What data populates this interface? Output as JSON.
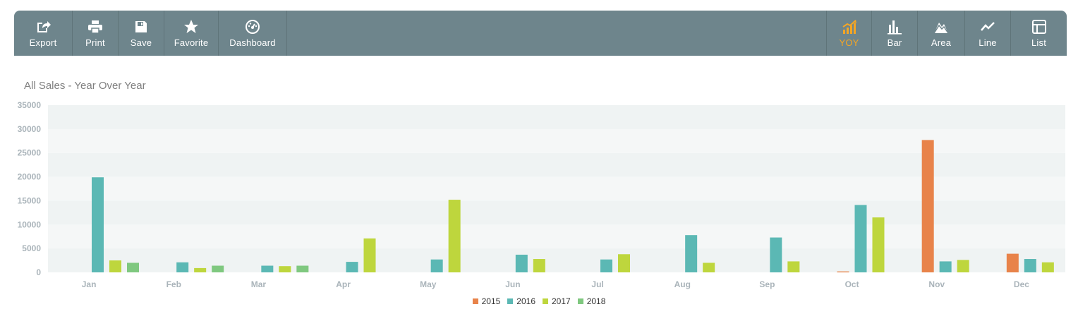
{
  "toolbar": {
    "left": [
      {
        "label": "Export",
        "icon": "export-icon"
      },
      {
        "label": "Print",
        "icon": "print-icon"
      },
      {
        "label": "Save",
        "icon": "save-icon"
      },
      {
        "label": "Favorite",
        "icon": "star-icon"
      },
      {
        "label": "Dashboard",
        "icon": "dashboard-icon"
      }
    ],
    "right": [
      {
        "label": "YOY",
        "icon": "yoy-chart-icon",
        "active": true
      },
      {
        "label": "Bar",
        "icon": "bar-chart-icon",
        "active": false
      },
      {
        "label": "Area",
        "icon": "area-chart-icon",
        "active": false
      },
      {
        "label": "Line",
        "icon": "line-chart-icon",
        "active": false
      },
      {
        "label": "List",
        "icon": "list-icon",
        "active": false
      }
    ],
    "bg_color": "#6e858c",
    "active_color": "#f5a623"
  },
  "chart_data": {
    "type": "bar",
    "title": "All Sales - Year Over Year",
    "xlabel": "",
    "ylabel": "",
    "ylim": [
      0,
      35000
    ],
    "yticks": [
      0,
      5000,
      10000,
      15000,
      20000,
      25000,
      30000,
      35000
    ],
    "categories": [
      "Jan",
      "Feb",
      "Mar",
      "Apr",
      "May",
      "Jun",
      "Jul",
      "Aug",
      "Sep",
      "Oct",
      "Nov",
      "Dec"
    ],
    "series": [
      {
        "name": "2015",
        "color": "#e8834a",
        "values": [
          null,
          null,
          null,
          null,
          null,
          null,
          null,
          null,
          null,
          200,
          27700,
          3900
        ]
      },
      {
        "name": "2016",
        "color": "#5bb8b4",
        "values": [
          19900,
          2100,
          1400,
          2200,
          2700,
          3700,
          2700,
          7800,
          7300,
          14100,
          2300,
          2800
        ]
      },
      {
        "name": "2017",
        "color": "#bed63d",
        "values": [
          2500,
          900,
          1300,
          7100,
          15200,
          2800,
          3800,
          2000,
          2300,
          11500,
          2600,
          2100
        ]
      },
      {
        "name": "2018",
        "color": "#7fc87f",
        "values": [
          2000,
          1400,
          1400,
          null,
          null,
          null,
          null,
          null,
          null,
          null,
          null,
          null
        ]
      }
    ],
    "grid": true,
    "legend": "bottom-center"
  }
}
